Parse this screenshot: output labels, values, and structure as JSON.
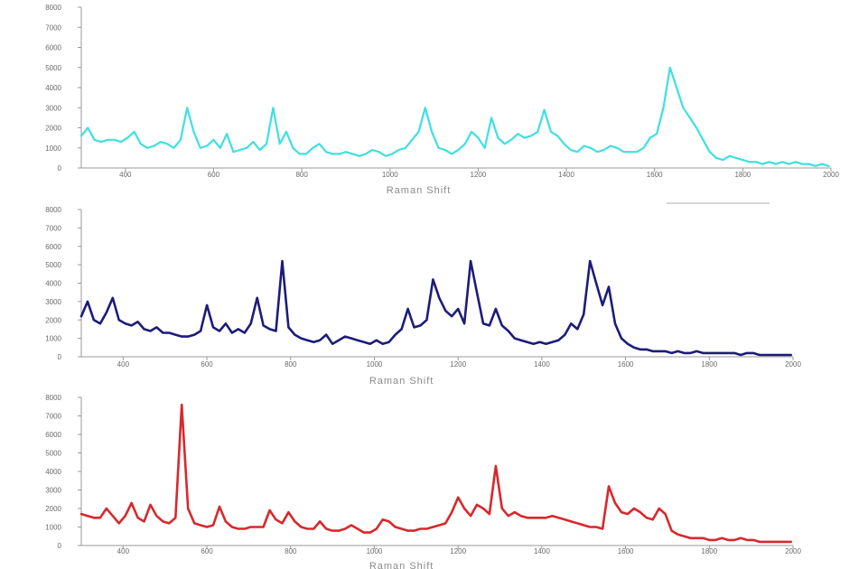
{
  "chart_data": [
    {
      "type": "line",
      "color": "#3ee0e0",
      "xlabel": "Raman Shift",
      "ylabel": "",
      "xlim": [
        300,
        2000
      ],
      "ylim": [
        0,
        8000
      ],
      "y_ticks": [
        "0",
        "1000",
        "2000",
        "3000",
        "4000",
        "5000",
        "6000",
        "7000",
        "8000"
      ],
      "x_ticks": [
        "400",
        "600",
        "800",
        "1000",
        "1200",
        "1400",
        "1600",
        "1800",
        "2000"
      ],
      "series": [
        {
          "x": [
            300,
            315,
            330,
            345,
            360,
            375,
            390,
            405,
            420,
            435,
            450,
            465,
            480,
            495,
            510,
            525,
            540,
            555,
            570,
            585,
            600,
            615,
            630,
            645,
            660,
            675,
            690,
            705,
            720,
            735,
            750,
            765,
            780,
            795,
            810,
            825,
            840,
            855,
            870,
            885,
            900,
            915,
            930,
            945,
            960,
            975,
            990,
            1005,
            1020,
            1035,
            1050,
            1065,
            1080,
            1095,
            1110,
            1125,
            1140,
            1155,
            1170,
            1185,
            1200,
            1215,
            1230,
            1245,
            1260,
            1275,
            1290,
            1305,
            1320,
            1335,
            1350,
            1365,
            1380,
            1395,
            1410,
            1425,
            1440,
            1455,
            1470,
            1485,
            1500,
            1515,
            1530,
            1545,
            1560,
            1575,
            1590,
            1605,
            1620,
            1635,
            1650,
            1665,
            1680,
            1695,
            1710,
            1725,
            1740,
            1755,
            1770,
            1785,
            1800,
            1815,
            1830,
            1845,
            1860,
            1875,
            1890,
            1905,
            1920,
            1935,
            1950,
            1965,
            1980,
            1995
          ],
          "y": [
            1600,
            2000,
            1400,
            1300,
            1400,
            1400,
            1300,
            1500,
            1800,
            1200,
            1000,
            1100,
            1300,
            1200,
            1000,
            1400,
            3000,
            1800,
            1000,
            1100,
            1400,
            1000,
            1700,
            800,
            900,
            1000,
            1300,
            900,
            1200,
            3000,
            1200,
            1800,
            1000,
            700,
            700,
            1000,
            1200,
            800,
            700,
            700,
            800,
            700,
            600,
            700,
            900,
            800,
            600,
            700,
            900,
            1000,
            1400,
            1800,
            3000,
            1800,
            1000,
            900,
            700,
            900,
            1200,
            1800,
            1500,
            1000,
            2500,
            1500,
            1200,
            1400,
            1700,
            1500,
            1600,
            1800,
            2900,
            1800,
            1600,
            1200,
            900,
            800,
            1100,
            1000,
            800,
            900,
            1100,
            1000,
            800,
            800,
            800,
            1000,
            1500,
            1700,
            3000,
            5000,
            4000,
            3000,
            2500,
            2000,
            1400,
            800,
            500,
            400,
            600,
            500,
            400,
            300,
            300,
            200,
            300,
            200,
            300,
            200,
            300,
            200,
            200,
            100,
            200,
            100
          ]
        }
      ]
    },
    {
      "type": "line",
      "color": "#1c1c7a",
      "xlabel": "Raman Shift",
      "ylabel": "",
      "xlim": [
        300,
        2000
      ],
      "ylim": [
        0,
        8000
      ],
      "y_ticks": [
        "0",
        "1000",
        "2000",
        "3000",
        "4000",
        "5000",
        "6000",
        "7000",
        "8000"
      ],
      "x_ticks": [
        "400",
        "600",
        "800",
        "1000",
        "1200",
        "1400",
        "1600",
        "1800",
        "2000"
      ],
      "series": [
        {
          "x": [
            300,
            315,
            330,
            345,
            360,
            375,
            390,
            405,
            420,
            435,
            450,
            465,
            480,
            495,
            510,
            525,
            540,
            555,
            570,
            585,
            600,
            615,
            630,
            645,
            660,
            675,
            690,
            705,
            720,
            735,
            750,
            765,
            780,
            795,
            810,
            825,
            840,
            855,
            870,
            885,
            900,
            915,
            930,
            945,
            960,
            975,
            990,
            1005,
            1020,
            1035,
            1050,
            1065,
            1080,
            1095,
            1110,
            1125,
            1140,
            1155,
            1170,
            1185,
            1200,
            1215,
            1230,
            1245,
            1260,
            1275,
            1290,
            1305,
            1320,
            1335,
            1350,
            1365,
            1380,
            1395,
            1410,
            1425,
            1440,
            1455,
            1470,
            1485,
            1500,
            1515,
            1530,
            1545,
            1560,
            1575,
            1590,
            1605,
            1620,
            1635,
            1650,
            1665,
            1680,
            1695,
            1710,
            1725,
            1740,
            1755,
            1770,
            1785,
            1800,
            1815,
            1830,
            1845,
            1860,
            1875,
            1890,
            1905,
            1920,
            1935,
            1950,
            1965,
            1980,
            1995
          ],
          "y": [
            2200,
            3000,
            2000,
            1800,
            2400,
            3200,
            2000,
            1800,
            1700,
            1900,
            1500,
            1400,
            1600,
            1300,
            1300,
            1200,
            1100,
            1100,
            1200,
            1400,
            2800,
            1600,
            1400,
            1800,
            1300,
            1500,
            1300,
            1800,
            3200,
            1700,
            1500,
            1400,
            5200,
            1600,
            1200,
            1000,
            900,
            800,
            900,
            1200,
            700,
            900,
            1100,
            1000,
            900,
            800,
            700,
            900,
            700,
            800,
            1200,
            1500,
            2600,
            1600,
            1700,
            2000,
            4200,
            3200,
            2500,
            2200,
            2600,
            1800,
            5200,
            3500,
            1800,
            1700,
            2600,
            1700,
            1400,
            1000,
            900,
            800,
            700,
            800,
            700,
            800,
            900,
            1200,
            1800,
            1500,
            2300,
            5200,
            4000,
            2800,
            3800,
            1800,
            1000,
            700,
            500,
            400,
            400,
            300,
            300,
            300,
            200,
            300,
            200,
            200,
            300,
            200,
            200,
            200,
            200,
            200,
            200,
            100,
            200,
            200,
            100,
            100,
            100,
            100,
            100,
            100
          ]
        }
      ]
    },
    {
      "type": "line",
      "color": "#d8282c",
      "xlabel": "Raman Shift",
      "ylabel": "",
      "xlim": [
        300,
        2000
      ],
      "ylim": [
        0,
        8000
      ],
      "y_ticks": [
        "0",
        "1000",
        "2000",
        "3000",
        "4000",
        "5000",
        "6000",
        "7000",
        "8000"
      ],
      "x_ticks": [
        "400",
        "600",
        "800",
        "1000",
        "1200",
        "1400",
        "1600",
        "1800",
        "2000"
      ],
      "series": [
        {
          "x": [
            300,
            315,
            330,
            345,
            360,
            375,
            390,
            405,
            420,
            435,
            450,
            465,
            480,
            495,
            510,
            525,
            540,
            555,
            570,
            585,
            600,
            615,
            630,
            645,
            660,
            675,
            690,
            705,
            720,
            735,
            750,
            765,
            780,
            795,
            810,
            825,
            840,
            855,
            870,
            885,
            900,
            915,
            930,
            945,
            960,
            975,
            990,
            1005,
            1020,
            1035,
            1050,
            1065,
            1080,
            1095,
            1110,
            1125,
            1140,
            1155,
            1170,
            1185,
            1200,
            1215,
            1230,
            1245,
            1260,
            1275,
            1290,
            1305,
            1320,
            1335,
            1350,
            1365,
            1380,
            1395,
            1410,
            1425,
            1440,
            1455,
            1470,
            1485,
            1500,
            1515,
            1530,
            1545,
            1560,
            1575,
            1590,
            1605,
            1620,
            1635,
            1650,
            1665,
            1680,
            1695,
            1710,
            1725,
            1740,
            1755,
            1770,
            1785,
            1800,
            1815,
            1830,
            1845,
            1860,
            1875,
            1890,
            1905,
            1920,
            1935,
            1950,
            1965,
            1980,
            1995
          ],
          "y": [
            1700,
            1600,
            1500,
            1500,
            2000,
            1600,
            1200,
            1600,
            2300,
            1500,
            1300,
            2200,
            1600,
            1300,
            1200,
            1500,
            7600,
            2000,
            1200,
            1100,
            1000,
            1100,
            2100,
            1300,
            1000,
            900,
            900,
            1000,
            1000,
            1000,
            1900,
            1400,
            1200,
            1800,
            1300,
            1000,
            900,
            900,
            1300,
            900,
            800,
            800,
            900,
            1100,
            900,
            700,
            700,
            900,
            1400,
            1300,
            1000,
            900,
            800,
            800,
            900,
            900,
            1000,
            1100,
            1200,
            1800,
            2600,
            2000,
            1600,
            2200,
            2000,
            1700,
            4300,
            2000,
            1600,
            1800,
            1600,
            1500,
            1500,
            1500,
            1500,
            1600,
            1500,
            1400,
            1300,
            1200,
            1100,
            1000,
            1000,
            900,
            3200,
            2300,
            1800,
            1700,
            2000,
            1800,
            1500,
            1400,
            2000,
            1700,
            800,
            600,
            500,
            400,
            400,
            400,
            300,
            300,
            400,
            300,
            300,
            400,
            300,
            300,
            200,
            200,
            200,
            200,
            200,
            200
          ]
        }
      ]
    }
  ]
}
